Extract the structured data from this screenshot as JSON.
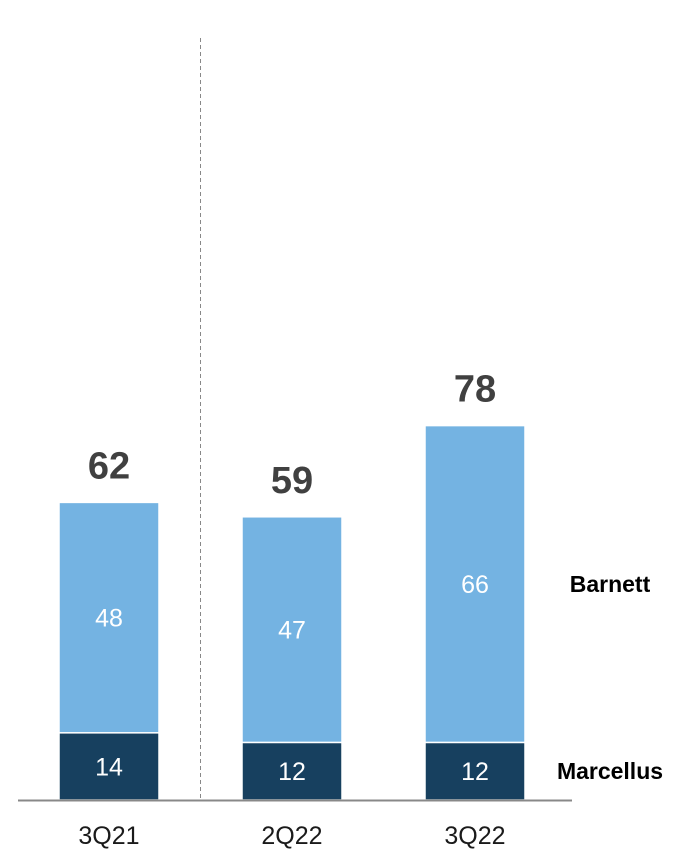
{
  "chart_data": {
    "type": "bar",
    "stacked": true,
    "categories": [
      "3Q21",
      "2Q22",
      "3Q22"
    ],
    "series": [
      {
        "name": "Marcellus",
        "values": [
          14,
          12,
          12
        ],
        "color": "#17405f"
      },
      {
        "name": "Barnett",
        "values": [
          48,
          47,
          66
        ],
        "color": "#74b3e2"
      }
    ],
    "totals": [
      "62",
      "59",
      "78"
    ],
    "ylim": [
      0,
      160
    ],
    "divider_after_category": 0,
    "legend_position": "right, beside last bar",
    "grid": false,
    "baseline_color": "#888888",
    "divider_color": "#888888"
  }
}
